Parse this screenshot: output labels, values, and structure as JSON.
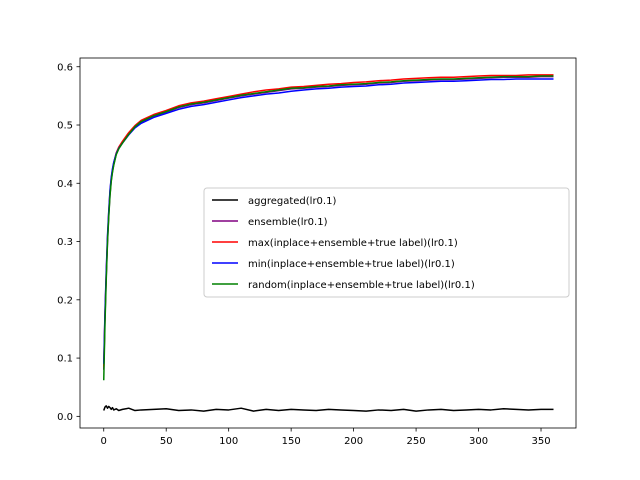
{
  "chart_data": {
    "type": "line",
    "title": "",
    "xlabel": "",
    "ylabel": "",
    "xlim": [
      -19,
      378
    ],
    "ylim": [
      -0.02,
      0.615
    ],
    "xticks": [
      0,
      50,
      100,
      150,
      200,
      250,
      300,
      350
    ],
    "yticks": [
      0.0,
      0.1,
      0.2,
      0.3,
      0.4,
      0.5,
      0.6
    ],
    "xtick_labels": [
      "0",
      "50",
      "100",
      "150",
      "200",
      "250",
      "300",
      "350"
    ],
    "ytick_labels": [
      "0.0",
      "0.1",
      "0.2",
      "0.3",
      "0.4",
      "0.5",
      "0.6"
    ],
    "grid": false,
    "legend_position": "center-right",
    "x": [
      0,
      1,
      2,
      3,
      4,
      5,
      6,
      7,
      8,
      10,
      12,
      15,
      20,
      25,
      30,
      40,
      50,
      60,
      70,
      80,
      90,
      100,
      110,
      120,
      130,
      140,
      150,
      160,
      170,
      180,
      190,
      200,
      210,
      220,
      230,
      240,
      250,
      260,
      270,
      280,
      290,
      300,
      310,
      320,
      330,
      340,
      350,
      360
    ],
    "series": [
      {
        "name": "aggregated(lr0.1)",
        "color": "#000000",
        "values": [
          0.01,
          0.016,
          0.018,
          0.014,
          0.017,
          0.015,
          0.012,
          0.015,
          0.011,
          0.013,
          0.01,
          0.012,
          0.014,
          0.01,
          0.011,
          0.012,
          0.013,
          0.01,
          0.011,
          0.009,
          0.012,
          0.011,
          0.014,
          0.009,
          0.012,
          0.01,
          0.012,
          0.011,
          0.01,
          0.012,
          0.011,
          0.01,
          0.009,
          0.011,
          0.01,
          0.012,
          0.009,
          0.011,
          0.012,
          0.01,
          0.011,
          0.012,
          0.011,
          0.013,
          0.012,
          0.011,
          0.012,
          0.012
        ]
      },
      {
        "name": "ensemble(lr0.1)",
        "color": "#800080",
        "values": [
          0.08,
          0.17,
          0.24,
          0.3,
          0.345,
          0.38,
          0.405,
          0.42,
          0.432,
          0.45,
          0.46,
          0.47,
          0.485,
          0.497,
          0.505,
          0.515,
          0.522,
          0.53,
          0.535,
          0.538,
          0.542,
          0.546,
          0.55,
          0.553,
          0.556,
          0.559,
          0.562,
          0.563,
          0.565,
          0.566,
          0.568,
          0.569,
          0.57,
          0.572,
          0.573,
          0.575,
          0.576,
          0.577,
          0.578,
          0.578,
          0.579,
          0.58,
          0.581,
          0.582,
          0.582,
          0.582,
          0.583,
          0.583
        ]
      },
      {
        "name": "max(inplace+ensemble+true label)(lr0.1)",
        "color": "#ff0000",
        "values": [
          0.085,
          0.175,
          0.245,
          0.305,
          0.35,
          0.385,
          0.408,
          0.423,
          0.435,
          0.452,
          0.462,
          0.472,
          0.487,
          0.499,
          0.508,
          0.518,
          0.525,
          0.533,
          0.538,
          0.541,
          0.545,
          0.549,
          0.553,
          0.557,
          0.56,
          0.562,
          0.565,
          0.566,
          0.568,
          0.57,
          0.571,
          0.573,
          0.574,
          0.576,
          0.577,
          0.579,
          0.58,
          0.581,
          0.582,
          0.582,
          0.583,
          0.584,
          0.585,
          0.585,
          0.585,
          0.586,
          0.586,
          0.586
        ]
      },
      {
        "name": "min(inplace+ensemble+true label)(lr0.1)",
        "color": "#0000ff",
        "values": [
          0.09,
          0.18,
          0.25,
          0.31,
          0.352,
          0.388,
          0.41,
          0.425,
          0.436,
          0.451,
          0.46,
          0.469,
          0.483,
          0.495,
          0.503,
          0.513,
          0.52,
          0.527,
          0.532,
          0.535,
          0.539,
          0.543,
          0.547,
          0.55,
          0.553,
          0.555,
          0.558,
          0.56,
          0.562,
          0.563,
          0.565,
          0.566,
          0.567,
          0.569,
          0.57,
          0.572,
          0.573,
          0.574,
          0.575,
          0.575,
          0.576,
          0.577,
          0.578,
          0.578,
          0.579,
          0.579,
          0.579,
          0.579
        ]
      },
      {
        "name": "random(inplace+ensemble+true label)(lr0.1)",
        "color": "#008000",
        "values": [
          0.062,
          0.16,
          0.235,
          0.298,
          0.342,
          0.378,
          0.403,
          0.419,
          0.431,
          0.449,
          0.459,
          0.469,
          0.484,
          0.497,
          0.506,
          0.516,
          0.523,
          0.531,
          0.536,
          0.539,
          0.543,
          0.547,
          0.551,
          0.554,
          0.557,
          0.56,
          0.563,
          0.564,
          0.566,
          0.567,
          0.569,
          0.57,
          0.571,
          0.573,
          0.574,
          0.576,
          0.577,
          0.578,
          0.579,
          0.579,
          0.58,
          0.581,
          0.582,
          0.583,
          0.583,
          0.583,
          0.584,
          0.584
        ]
      }
    ]
  }
}
